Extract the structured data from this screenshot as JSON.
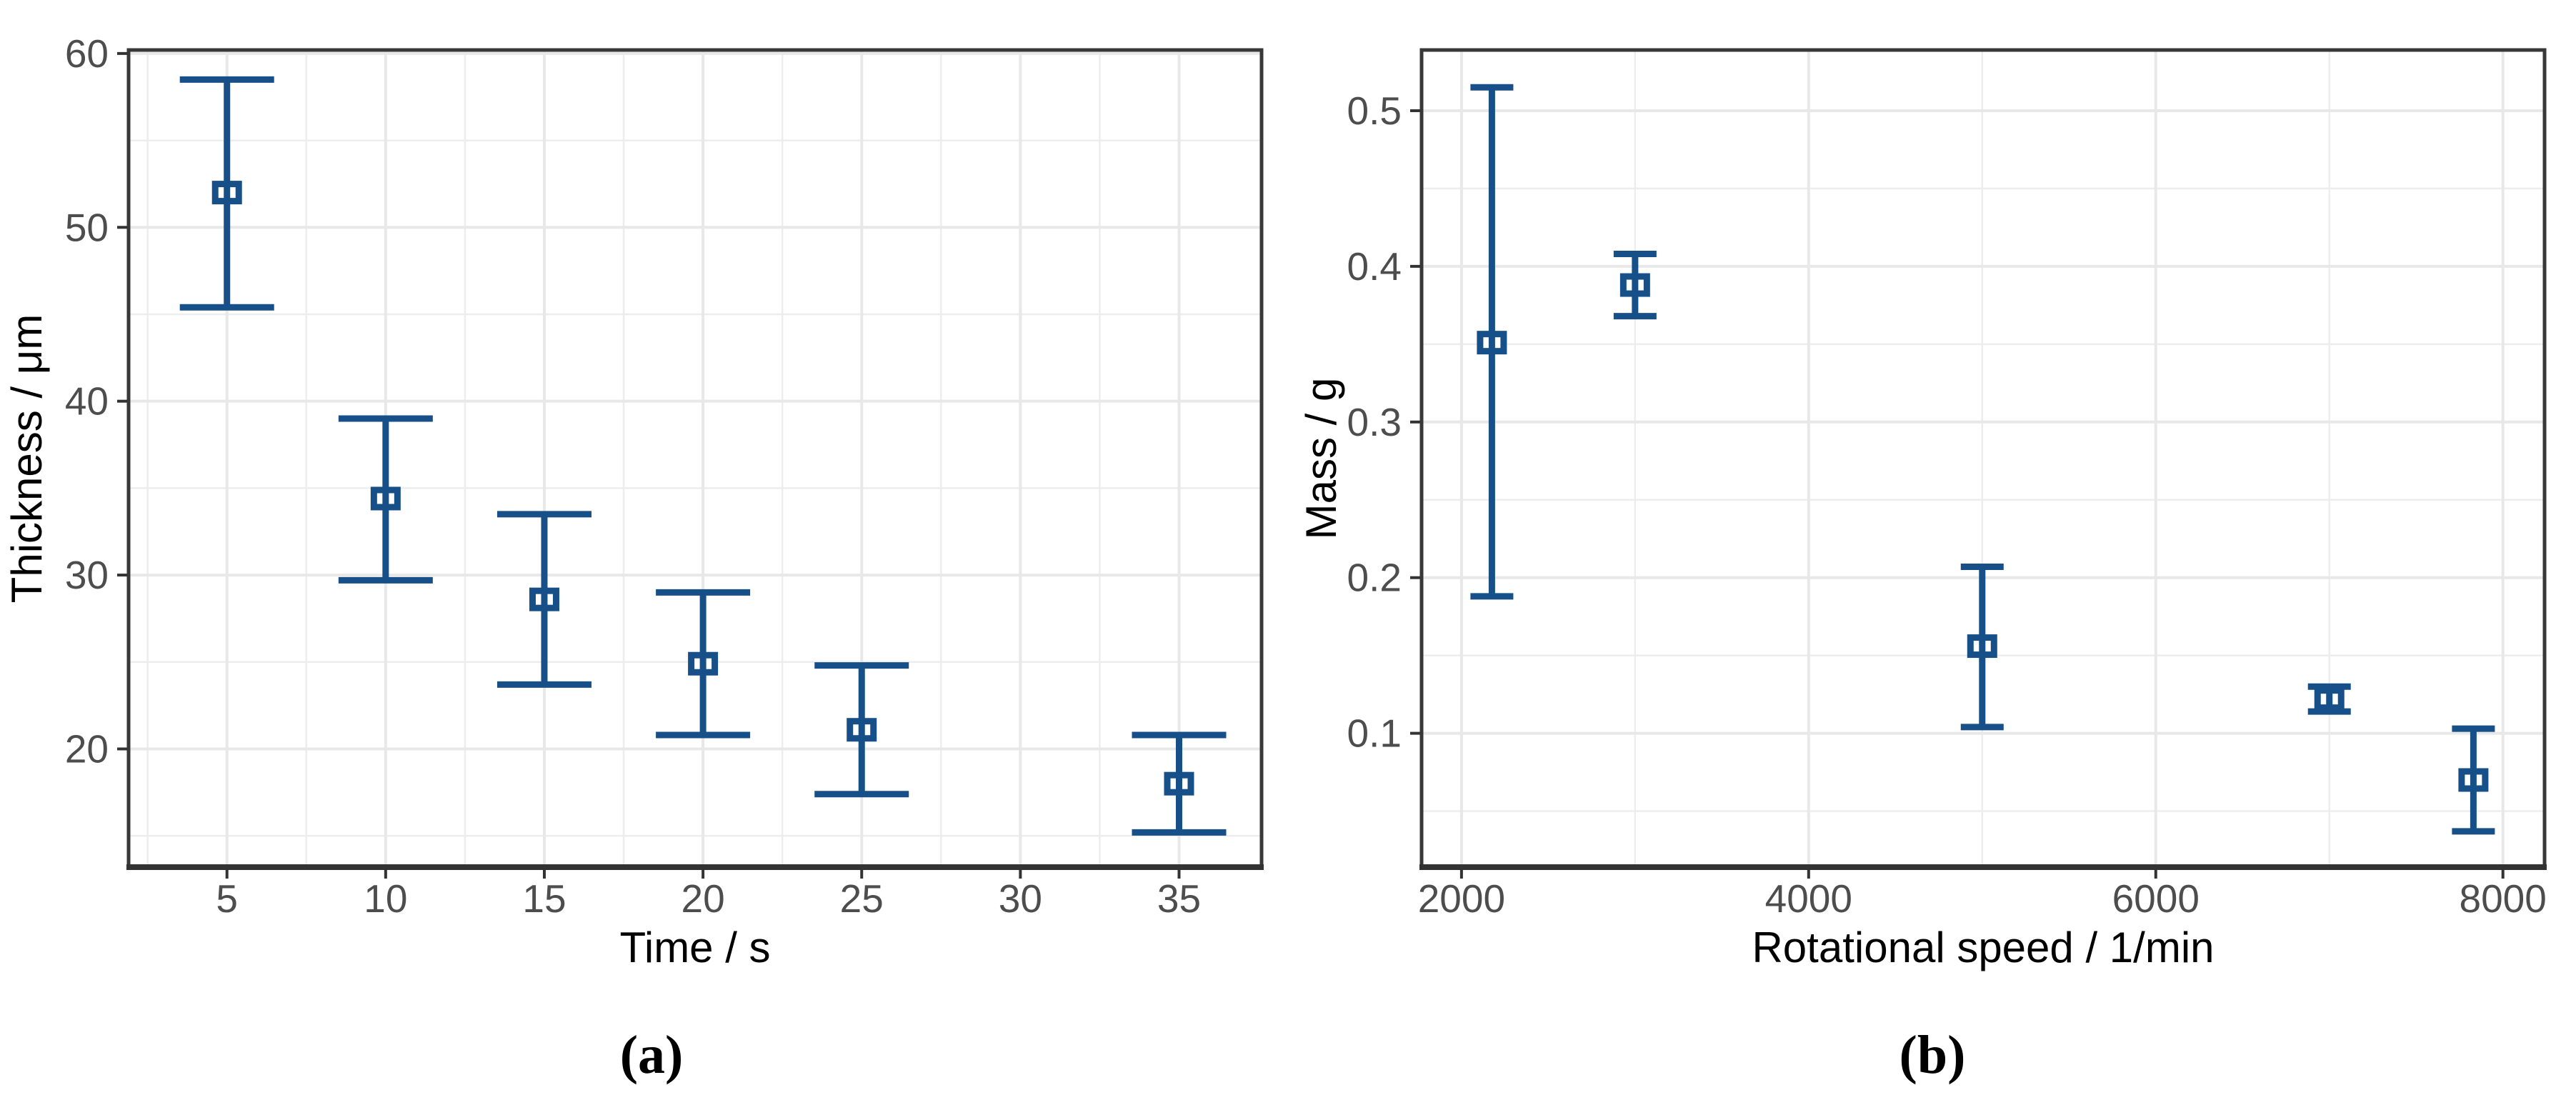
{
  "figure": {
    "background": "#ffffff",
    "description": "Two-panel error bar figure: film thickness vs spin time (a) and deposited mass vs rotational speed (b)"
  },
  "colors": {
    "errorbar": "#175089",
    "marker_fill": "#ffffff",
    "grid_major": "#e8e8e8",
    "grid_minor": "#ededed",
    "axis_text": "#4d4d4d",
    "axis_title": "#000000",
    "panel_border": "#383838",
    "axis_line": "#333333",
    "caption": "#000000",
    "background": "#ffffff"
  },
  "chart_data": [
    {
      "id": "a",
      "type": "scatter",
      "caption": "(a)",
      "xlabel": "Time / s",
      "ylabel": "Thickness / μm",
      "marker": "open-square",
      "grid": true,
      "legend_position": "none",
      "xlim": [
        1.9,
        37.6
      ],
      "ylim": [
        13.2,
        60.2
      ],
      "x_tick_values": [
        5,
        10,
        15,
        20,
        25,
        30,
        35
      ],
      "x_tick_labels": [
        "5",
        "10",
        "15",
        "20",
        "25",
        "30",
        "35"
      ],
      "y_tick_values": [
        20,
        30,
        40,
        50,
        60
      ],
      "y_tick_labels": [
        "20",
        "30",
        "40",
        "50",
        "60"
      ],
      "x_minor_values": [
        2.5,
        7.5,
        12.5,
        17.5,
        22.5,
        27.5,
        32.5
      ],
      "y_minor_values": [
        15,
        25,
        35,
        45,
        55
      ],
      "points": [
        {
          "x": 5,
          "y": 52.0,
          "lo": 45.4,
          "hi": 58.5
        },
        {
          "x": 10,
          "y": 34.4,
          "lo": 29.7,
          "hi": 39.0
        },
        {
          "x": 15,
          "y": 28.6,
          "lo": 23.7,
          "hi": 33.5
        },
        {
          "x": 20,
          "y": 24.9,
          "lo": 20.8,
          "hi": 29.0
        },
        {
          "x": 25,
          "y": 21.1,
          "lo": 17.4,
          "hi": 24.8
        },
        {
          "x": 35,
          "y": 18.0,
          "lo": 15.2,
          "hi": 20.8
        }
      ]
    },
    {
      "id": "b",
      "type": "scatter",
      "caption": "(b)",
      "xlabel": "Rotational speed / 1/min",
      "ylabel": "Mass / g",
      "marker": "open-square",
      "grid": true,
      "legend_position": "none",
      "xlim": [
        1770,
        8240
      ],
      "ylim": [
        0.014,
        0.539
      ],
      "x_tick_values": [
        2000,
        4000,
        6000,
        8000
      ],
      "x_tick_labels": [
        "2000",
        "4000",
        "6000",
        "8000"
      ],
      "y_tick_values": [
        0.1,
        0.2,
        0.3,
        0.4,
        0.5
      ],
      "y_tick_labels": [
        "0.1",
        "0.2",
        "0.3",
        "0.4",
        "0.5"
      ],
      "x_minor_values": [
        3000,
        5000,
        7000
      ],
      "y_minor_values": [
        0.05,
        0.15,
        0.25,
        0.35,
        0.45
      ],
      "points": [
        {
          "x": 2175,
          "y": 0.351,
          "lo": 0.188,
          "hi": 0.515
        },
        {
          "x": 3000,
          "y": 0.388,
          "lo": 0.368,
          "hi": 0.408
        },
        {
          "x": 5000,
          "y": 0.156,
          "lo": 0.104,
          "hi": 0.207
        },
        {
          "x": 7000,
          "y": 0.122,
          "lo": 0.114,
          "hi": 0.13
        },
        {
          "x": 7830,
          "y": 0.07,
          "lo": 0.037,
          "hi": 0.103
        }
      ]
    }
  ]
}
